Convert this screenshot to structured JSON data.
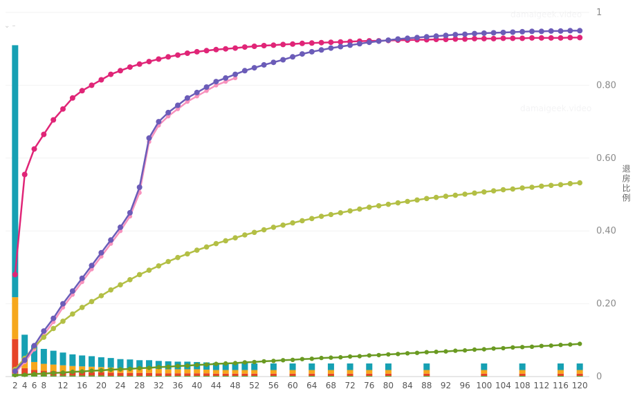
{
  "watermark": "damaigeek.video",
  "corner_artifact": "⌄ –",
  "chart_data": {
    "type": "line+bar",
    "title": "",
    "xlabel": "",
    "ylabel": "退房比例",
    "legend": "none",
    "grid": "faint-horizontal",
    "x_domain": [
      0,
      122
    ],
    "ylim": [
      0,
      1
    ],
    "x_tick_labels": [
      "2",
      "4",
      "6",
      "8",
      "12",
      "16",
      "20",
      "24",
      "28",
      "32",
      "36",
      "40",
      "44",
      "48",
      "52",
      "56",
      "60",
      "64",
      "68",
      "72",
      "76",
      "80",
      "84",
      "88",
      "92",
      "96",
      "100",
      "104",
      "108",
      "112",
      "116",
      "120"
    ],
    "y_ticks": [
      {
        "value": 0,
        "label": "0"
      },
      {
        "value": 0.2,
        "label": "0.20"
      },
      {
        "value": 0.4,
        "label": "0.40"
      },
      {
        "value": 0.6,
        "label": "0.60"
      },
      {
        "value": 0.8,
        "label": "0.80"
      },
      {
        "value": 1,
        "label": "1"
      }
    ],
    "line_series": [
      {
        "name": "pink",
        "color": "#f792bd",
        "x_start": 2,
        "x_step": 2,
        "stroke_width": 2.5,
        "dot_radius": 3.2,
        "values": [
          0.01,
          0.04,
          0.075,
          0.115,
          0.15,
          0.19,
          0.225,
          0.26,
          0.295,
          0.33,
          0.365,
          0.4,
          0.44,
          0.505,
          0.645,
          0.69,
          0.715,
          0.735,
          0.755,
          0.77,
          0.785,
          0.8,
          0.81,
          0.82
        ]
      },
      {
        "name": "yellow-green",
        "color": "#b3bf45",
        "x_start": 2,
        "x_step": 2,
        "stroke_width": 2.5,
        "dot_radius": 3.8,
        "values": [
          0.02,
          0.05,
          0.082,
          0.108,
          0.132,
          0.152,
          0.172,
          0.19,
          0.206,
          0.222,
          0.238,
          0.252,
          0.266,
          0.28,
          0.292,
          0.304,
          0.316,
          0.327,
          0.337,
          0.347,
          0.356,
          0.365,
          0.373,
          0.381,
          0.389,
          0.396,
          0.403,
          0.41,
          0.416,
          0.422,
          0.428,
          0.434,
          0.44,
          0.445,
          0.45,
          0.455,
          0.46,
          0.465,
          0.469,
          0.473,
          0.477,
          0.481,
          0.485,
          0.489,
          0.492,
          0.495,
          0.498,
          0.501,
          0.504,
          0.507,
          0.51,
          0.513,
          0.515,
          0.518,
          0.52,
          0.523,
          0.525,
          0.527,
          0.53,
          0.532
        ]
      },
      {
        "name": "dark-green",
        "color": "#6a9a22",
        "x_start": 2,
        "x_step": 2,
        "stroke_width": 2.5,
        "dot_radius": 3.2,
        "values": [
          0.004,
          0.005,
          0.007,
          0.008,
          0.01,
          0.011,
          0.013,
          0.014,
          0.016,
          0.017,
          0.019,
          0.02,
          0.021,
          0.023,
          0.024,
          0.026,
          0.027,
          0.029,
          0.03,
          0.032,
          0.033,
          0.035,
          0.036,
          0.037,
          0.039,
          0.04,
          0.042,
          0.043,
          0.045,
          0.046,
          0.048,
          0.049,
          0.051,
          0.052,
          0.053,
          0.055,
          0.056,
          0.058,
          0.059,
          0.061,
          0.062,
          0.064,
          0.065,
          0.067,
          0.068,
          0.069,
          0.071,
          0.072,
          0.074,
          0.075,
          0.077,
          0.078,
          0.08,
          0.081,
          0.082,
          0.084,
          0.085,
          0.087,
          0.088,
          0.09
        ]
      },
      {
        "name": "magenta",
        "color": "#e02577",
        "x_start": 2,
        "x_step": 2,
        "stroke_width": 2.5,
        "dot_radius": 4,
        "values": [
          0.28,
          0.555,
          0.625,
          0.665,
          0.705,
          0.735,
          0.765,
          0.785,
          0.8,
          0.815,
          0.83,
          0.84,
          0.85,
          0.858,
          0.865,
          0.872,
          0.878,
          0.883,
          0.888,
          0.892,
          0.895,
          0.898,
          0.9,
          0.902,
          0.905,
          0.907,
          0.909,
          0.91,
          0.912,
          0.913,
          0.915,
          0.916,
          0.917,
          0.918,
          0.919,
          0.92,
          0.921,
          0.922,
          0.922,
          0.923,
          0.924,
          0.924,
          0.925,
          0.925,
          0.926,
          0.926,
          0.927,
          0.927,
          0.928,
          0.928,
          0.928,
          0.929,
          0.929,
          0.929,
          0.93,
          0.93,
          0.93,
          0.93,
          0.931,
          0.931
        ]
      },
      {
        "name": "purple",
        "color": "#6b5cb8",
        "x_start": 2,
        "x_step": 2,
        "stroke_width": 2.5,
        "dot_radius": 4,
        "values": [
          0.015,
          0.045,
          0.085,
          0.125,
          0.16,
          0.2,
          0.235,
          0.27,
          0.305,
          0.34,
          0.375,
          0.41,
          0.45,
          0.52,
          0.655,
          0.7,
          0.725,
          0.745,
          0.765,
          0.78,
          0.795,
          0.81,
          0.82,
          0.83,
          0.84,
          0.848,
          0.856,
          0.863,
          0.87,
          0.878,
          0.886,
          0.892,
          0.897,
          0.902,
          0.906,
          0.91,
          0.914,
          0.918,
          0.921,
          0.924,
          0.927,
          0.929,
          0.931,
          0.933,
          0.935,
          0.937,
          0.939,
          0.94,
          0.942,
          0.943,
          0.944,
          0.945,
          0.946,
          0.947,
          0.948,
          0.948,
          0.949,
          0.949,
          0.95,
          0.95
        ]
      }
    ],
    "bar_stack_order": [
      "green",
      "red",
      "orange",
      "teal"
    ],
    "bar_colors": {
      "green": "#57a52c",
      "red": "#e64428",
      "orange": "#f6a71c",
      "teal": "#16a0b3"
    },
    "bars": [
      [
        2,
        0.008,
        0.095,
        0.115,
        0.692
      ],
      [
        4,
        0.005,
        0.018,
        0.027,
        0.065
      ],
      [
        6,
        0.004,
        0.014,
        0.022,
        0.046
      ],
      [
        8,
        0.004,
        0.012,
        0.019,
        0.041
      ],
      [
        10,
        0.003,
        0.012,
        0.018,
        0.038
      ],
      [
        12,
        0.003,
        0.011,
        0.017,
        0.035
      ],
      [
        14,
        0.003,
        0.01,
        0.016,
        0.032
      ],
      [
        16,
        0.003,
        0.01,
        0.015,
        0.03
      ],
      [
        18,
        0.003,
        0.009,
        0.015,
        0.029
      ],
      [
        20,
        0.003,
        0.009,
        0.014,
        0.027
      ],
      [
        22,
        0.002,
        0.009,
        0.014,
        0.026
      ],
      [
        24,
        0.002,
        0.008,
        0.013,
        0.025
      ],
      [
        26,
        0.002,
        0.008,
        0.013,
        0.024
      ],
      [
        28,
        0.002,
        0.008,
        0.012,
        0.023
      ],
      [
        30,
        0.002,
        0.008,
        0.012,
        0.023
      ],
      [
        32,
        0.002,
        0.007,
        0.012,
        0.022
      ],
      [
        34,
        0.002,
        0.007,
        0.011,
        0.022
      ],
      [
        36,
        0.002,
        0.007,
        0.011,
        0.021
      ],
      [
        38,
        0.002,
        0.007,
        0.011,
        0.021
      ],
      [
        40,
        0.002,
        0.007,
        0.011,
        0.02
      ],
      [
        42,
        0.002,
        0.007,
        0.01,
        0.02
      ],
      [
        44,
        0.002,
        0.006,
        0.01,
        0.02
      ],
      [
        46,
        0.002,
        0.006,
        0.01,
        0.02
      ],
      [
        48,
        0.002,
        0.006,
        0.01,
        0.019
      ],
      [
        50,
        0.002,
        0.006,
        0.01,
        0.019
      ],
      [
        52,
        0.002,
        0.006,
        0.01,
        0.018
      ],
      [
        56,
        0.002,
        0.006,
        0.01,
        0.018
      ],
      [
        60,
        0.002,
        0.006,
        0.01,
        0.018
      ],
      [
        64,
        0.002,
        0.006,
        0.01,
        0.018
      ],
      [
        68,
        0.002,
        0.006,
        0.01,
        0.018
      ],
      [
        72,
        0.002,
        0.006,
        0.01,
        0.018
      ],
      [
        76,
        0.002,
        0.006,
        0.01,
        0.018
      ],
      [
        80,
        0.002,
        0.006,
        0.01,
        0.018
      ],
      [
        88,
        0.002,
        0.006,
        0.01,
        0.018
      ],
      [
        100,
        0.002,
        0.006,
        0.01,
        0.018
      ],
      [
        108,
        0.002,
        0.006,
        0.01,
        0.018
      ],
      [
        116,
        0.002,
        0.006,
        0.01,
        0.018
      ],
      [
        120,
        0.002,
        0.006,
        0.01,
        0.018
      ]
    ]
  }
}
